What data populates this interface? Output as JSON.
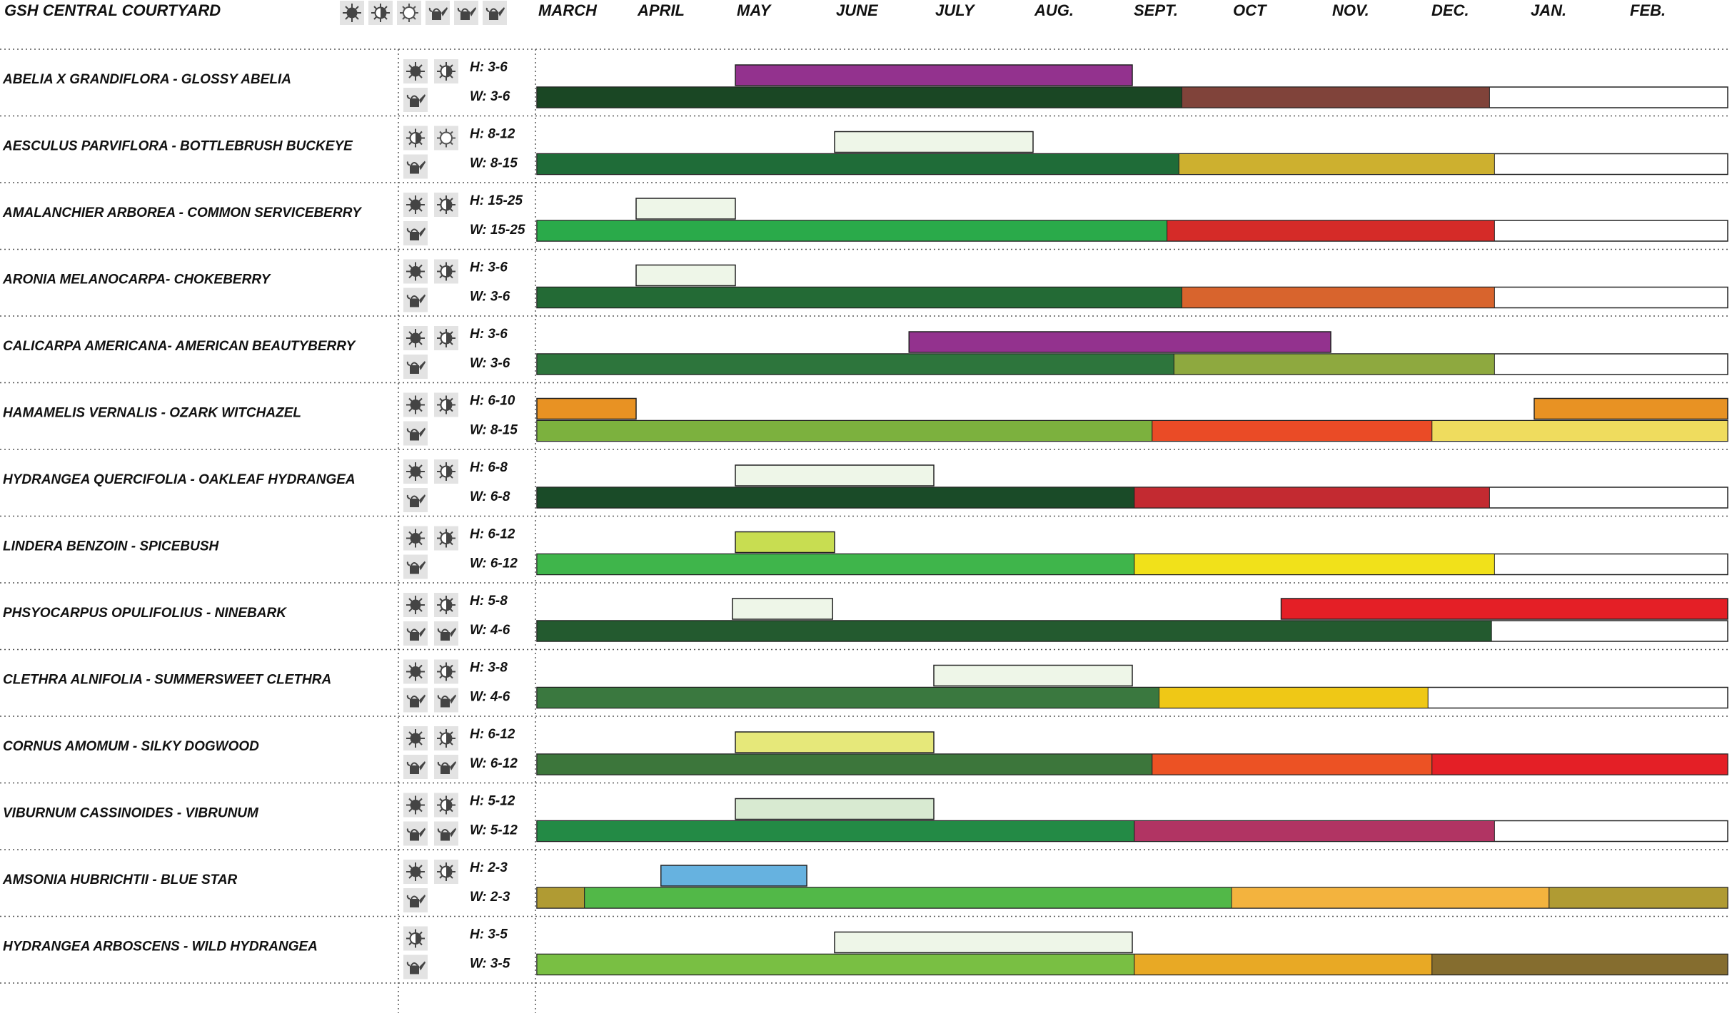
{
  "title": "GSH CENTRAL COURTYARD",
  "header_icons": [
    "sun-icon",
    "partial-sun-icon",
    "shade-icon",
    "watering-can-icon",
    "watering-can-icon",
    "watering-can-icon"
  ],
  "chart_data": {
    "type": "gantt",
    "months": [
      "MARCH",
      "APRIL",
      "MAY",
      "JUNE",
      "JULY",
      "AUG.",
      "SEPT.",
      "OCT",
      "NOV.",
      "DEC.",
      "JAN.",
      "FEB."
    ],
    "rows": [
      {
        "name": "ABELIA X GRANDIFLORA - GLOSSY ABELIA",
        "icons": [
          "sun-icon",
          "partial-sun-icon",
          "watering-can-icon"
        ],
        "height": "H: 3-6",
        "width": "W: 3-6",
        "bloom": [
          {
            "start": 2.0,
            "end": 6.0,
            "color": "#93328e"
          }
        ],
        "foliage": [
          {
            "start": 0,
            "end": 6.5,
            "color": "#1a4724"
          },
          {
            "start": 6.5,
            "end": 9.6,
            "color": "#80433a"
          }
        ]
      },
      {
        "name": "AESCULUS PARVIFLORA - BOTTLEBRUSH BUCKEYE",
        "icons": [
          "partial-sun-icon",
          "shade-icon",
          "watering-can-icon"
        ],
        "height": "H: 8-12",
        "width": "W: 8-15",
        "bloom": [
          {
            "start": 3.0,
            "end": 5.0,
            "color": "#eef6e8"
          }
        ],
        "foliage": [
          {
            "start": 0,
            "end": 6.47,
            "color": "#1f6c38"
          },
          {
            "start": 6.47,
            "end": 9.65,
            "color": "#cdb02f"
          }
        ]
      },
      {
        "name": "AMALANCHIER ARBOREA - COMMON SERVICEBERRY",
        "icons": [
          "sun-icon",
          "partial-sun-icon",
          "watering-can-icon"
        ],
        "height": "H: 15-25",
        "width": "W: 15-25",
        "bloom": [
          {
            "start": 1.0,
            "end": 2.0,
            "color": "#eef6e8"
          }
        ],
        "foliage": [
          {
            "start": 0,
            "end": 6.35,
            "color": "#2aaa4a"
          },
          {
            "start": 6.35,
            "end": 9.65,
            "color": "#d52b28"
          }
        ]
      },
      {
        "name": "ARONIA MELANOCARPA- CHOKEBERRY",
        "icons": [
          "sun-icon",
          "partial-sun-icon",
          "watering-can-icon"
        ],
        "height": "H: 3-6",
        "width": "W: 3-6",
        "bloom": [
          {
            "start": 1.0,
            "end": 2.0,
            "color": "#eef6e8"
          }
        ],
        "foliage": [
          {
            "start": 0,
            "end": 6.5,
            "color": "#236a35"
          },
          {
            "start": 6.5,
            "end": 9.65,
            "color": "#d8642d"
          }
        ]
      },
      {
        "name": "CALICARPA AMERICANA- AMERICAN BEAUTYBERRY",
        "icons": [
          "sun-icon",
          "partial-sun-icon",
          "watering-can-icon"
        ],
        "height": "H: 3-6",
        "width": "W: 3-6",
        "bloom": [
          {
            "start": 3.75,
            "end": 8.0,
            "color": "#93328e"
          }
        ],
        "foliage": [
          {
            "start": 0,
            "end": 6.42,
            "color": "#2d753c"
          },
          {
            "start": 6.42,
            "end": 9.65,
            "color": "#8ea93f"
          }
        ]
      },
      {
        "name": "HAMAMELIS VERNALIS - OZARK WITCHAZEL",
        "icons": [
          "sun-icon",
          "partial-sun-icon",
          "watering-can-icon"
        ],
        "height": "H: 6-10",
        "width": "W: 8-15",
        "bloom": [
          {
            "start": 0,
            "end": 1.0,
            "color": "#e89223"
          },
          {
            "start": 10.05,
            "end": 12.0,
            "color": "#e89223"
          }
        ],
        "foliage": [
          {
            "start": 0,
            "end": 6.2,
            "color": "#7cb13e"
          },
          {
            "start": 6.2,
            "end": 9.02,
            "color": "#ea4b26"
          },
          {
            "start": 9.02,
            "end": 12.0,
            "color": "#efdc5e"
          }
        ]
      },
      {
        "name": "HYDRANGEA QUERCIFOLIA - OAKLEAF HYDRANGEA",
        "icons": [
          "sun-icon",
          "partial-sun-icon",
          "watering-can-icon"
        ],
        "height": "H: 6-8",
        "width": "W: 6-8",
        "bloom": [
          {
            "start": 2.0,
            "end": 4.0,
            "color": "#eef6e8"
          }
        ],
        "foliage": [
          {
            "start": 0,
            "end": 6.02,
            "color": "#1a4b28"
          },
          {
            "start": 6.02,
            "end": 9.6,
            "color": "#c32a31"
          }
        ]
      },
      {
        "name": "LINDERA BENZOIN - SPICEBUSH",
        "icons": [
          "sun-icon",
          "partial-sun-icon",
          "watering-can-icon"
        ],
        "height": "H: 6-12",
        "width": "W: 6-12",
        "bloom": [
          {
            "start": 2.0,
            "end": 3.0,
            "color": "#c8dd51"
          }
        ],
        "foliage": [
          {
            "start": 0,
            "end": 6.02,
            "color": "#3fb54b"
          },
          {
            "start": 6.02,
            "end": 9.65,
            "color": "#f1e11a"
          }
        ]
      },
      {
        "name": "PHSYOCARPUS OPULIFOLIUS - NINEBARK",
        "icons": [
          "sun-icon",
          "partial-sun-icon",
          "watering-can-icon",
          "watering-can-icon"
        ],
        "height": "H: 5-8",
        "width": "W: 4-6",
        "bloom": [
          {
            "start": 1.97,
            "end": 2.98,
            "color": "#eef6e8"
          },
          {
            "start": 7.5,
            "end": 12.0,
            "color": "#e41f26"
          }
        ],
        "foliage": [
          {
            "start": 0,
            "end": 9.62,
            "color": "#235a2f"
          }
        ]
      },
      {
        "name": "CLETHRA ALNIFOLIA - SUMMERSWEET CLETHRA",
        "icons": [
          "sun-icon",
          "partial-sun-icon",
          "watering-can-icon",
          "watering-can-icon"
        ],
        "height": "H: 3-8",
        "width": "W: 4-6",
        "bloom": [
          {
            "start": 4.0,
            "end": 6.0,
            "color": "#eef6e8"
          }
        ],
        "foliage": [
          {
            "start": 0,
            "end": 6.27,
            "color": "#3a783f"
          },
          {
            "start": 6.27,
            "end": 8.98,
            "color": "#efc816"
          }
        ]
      },
      {
        "name": "CORNUS AMOMUM - SILKY DOGWOOD",
        "icons": [
          "sun-icon",
          "partial-sun-icon",
          "watering-can-icon",
          "watering-can-icon"
        ],
        "height": "H: 6-12",
        "width": "W: 6-12",
        "bloom": [
          {
            "start": 2.0,
            "end": 4.0,
            "color": "#e6e87a"
          }
        ],
        "foliage": [
          {
            "start": 0,
            "end": 6.2,
            "color": "#3c763b"
          },
          {
            "start": 6.2,
            "end": 9.02,
            "color": "#ec5224"
          },
          {
            "start": 9.02,
            "end": 12.0,
            "color": "#e41f26"
          }
        ]
      },
      {
        "name": "VIBURNUM CASSINOIDES - VIBRUNUM",
        "icons": [
          "sun-icon",
          "partial-sun-icon",
          "watering-can-icon",
          "watering-can-icon"
        ],
        "height": "H: 5-12",
        "width": "W: 5-12",
        "bloom": [
          {
            "start": 2.0,
            "end": 4.0,
            "color": "#d8ead1"
          }
        ],
        "foliage": [
          {
            "start": 0,
            "end": 6.02,
            "color": "#238a45"
          },
          {
            "start": 6.02,
            "end": 9.65,
            "color": "#b13463"
          }
        ]
      },
      {
        "name": "AMSONIA HUBRICHTII - BLUE STAR",
        "icons": [
          "sun-icon",
          "partial-sun-icon",
          "watering-can-icon"
        ],
        "height": "H: 2-3",
        "width": "W: 2-3",
        "bloom": [
          {
            "start": 1.25,
            "end": 2.72,
            "color": "#66b2e0"
          }
        ],
        "foliage": [
          {
            "start": 0,
            "end": 0.48,
            "color": "#b09b33"
          },
          {
            "start": 0.48,
            "end": 7.0,
            "color": "#52b848"
          },
          {
            "start": 7.0,
            "end": 10.2,
            "color": "#f3b33e"
          },
          {
            "start": 10.2,
            "end": 12.0,
            "color": "#b09b33"
          }
        ]
      },
      {
        "name": "HYDRANGEA ARBOSCENS - WILD HYDRANGEA",
        "icons": [
          "partial-sun-icon",
          "watering-can-icon"
        ],
        "height": "H: 3-5",
        "width": "W: 3-5",
        "bloom": [
          {
            "start": 3.0,
            "end": 6.0,
            "color": "#eef6e8"
          }
        ],
        "foliage": [
          {
            "start": 0,
            "end": 6.02,
            "color": "#79bf43"
          },
          {
            "start": 6.02,
            "end": 9.02,
            "color": "#e8a925"
          },
          {
            "start": 9.02,
            "end": 12.0,
            "color": "#856d2f"
          }
        ]
      }
    ]
  }
}
